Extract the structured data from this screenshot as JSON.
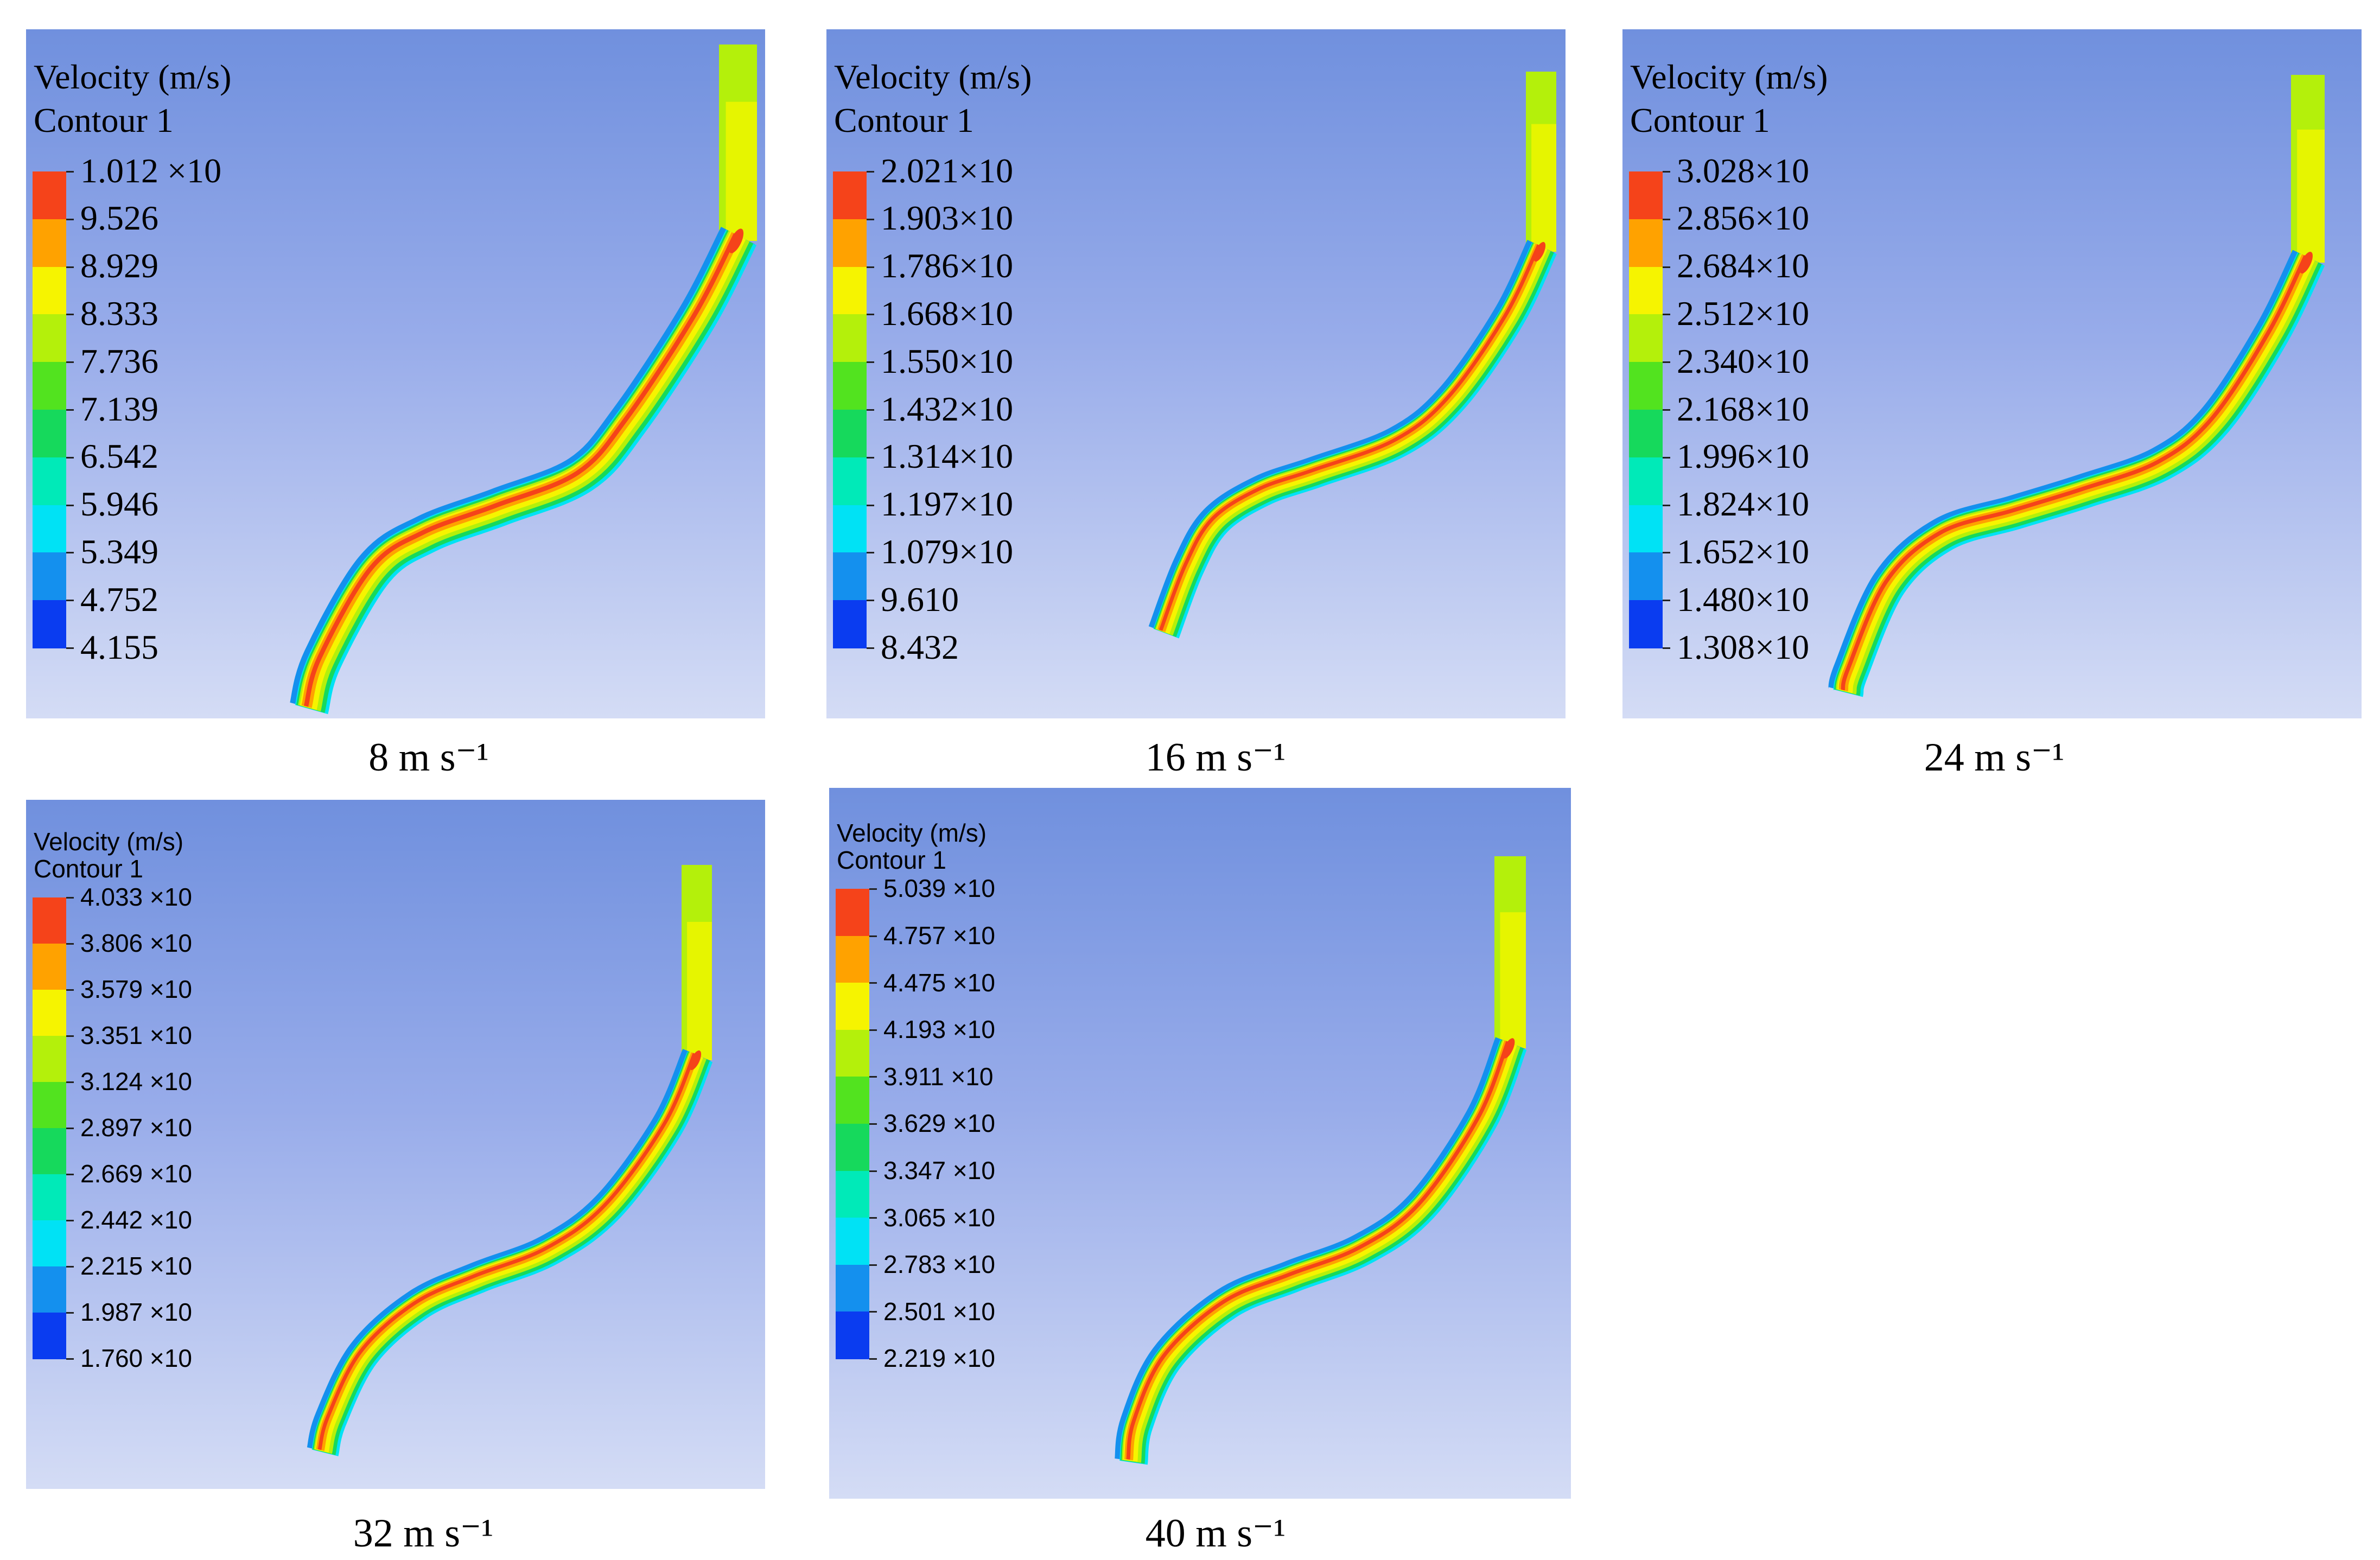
{
  "colormap": [
    "#0a3cf0",
    "#1490ee",
    "#00e2f5",
    "#00eab8",
    "#16d95c",
    "#52e31f",
    "#b4f00b",
    "#f6f400",
    "#ffa200",
    "#f5431a"
  ],
  "panels": [
    {
      "id": "p8",
      "header_line1": "Velocity (m/s)",
      "header_line2": "Contour 1",
      "labels": [
        "1.012 ×10",
        "9.526",
        "8.929",
        "8.333",
        "7.736",
        "7.139",
        "6.542",
        "5.946",
        "5.349",
        "4.752",
        "4.155"
      ],
      "caption": "8 m s⁻¹"
    },
    {
      "id": "p16",
      "header_line1": "Velocity (m/s)",
      "header_line2": "Contour 1",
      "labels": [
        "2.021×10",
        "1.903×10",
        "1.786×10",
        "1.668×10",
        "1.550×10",
        "1.432×10",
        "1.314×10",
        "1.197×10",
        "1.079×10",
        "9.610",
        "8.432"
      ],
      "caption": "16 m s⁻¹"
    },
    {
      "id": "p24",
      "header_line1": "Velocity (m/s)",
      "header_line2": "Contour 1",
      "labels": [
        "3.028×10",
        "2.856×10",
        "2.684×10",
        "2.512×10",
        "2.340×10",
        "2.168×10",
        "1.996×10",
        "1.824×10",
        "1.652×10",
        "1.480×10",
        "1.308×10"
      ],
      "caption": "24 m s⁻¹"
    },
    {
      "id": "p32",
      "header_line1": "Velocity (m/s)",
      "header_line2": "Contour 1",
      "labels": [
        "4.033 ×10",
        "3.806 ×10",
        "3.579 ×10",
        "3.351 ×10",
        "3.124 ×10",
        "2.897 ×10",
        "2.669 ×10",
        "2.442 ×10",
        "2.215 ×10",
        "1.987 ×10",
        "1.760 ×10"
      ],
      "caption": "32 m s⁻¹"
    },
    {
      "id": "p40",
      "header_line1": "Velocity (m/s)",
      "header_line2": "Contour 1",
      "labels": [
        "5.039 ×10",
        "4.757 ×10",
        "4.475 ×10",
        "4.193 ×10",
        "3.911 ×10",
        "3.629 ×10",
        "3.347 ×10",
        "3.065 ×10",
        "2.783 ×10",
        "2.501 ×10",
        "2.219 ×10"
      ],
      "caption": "40 m s⁻¹"
    }
  ]
}
